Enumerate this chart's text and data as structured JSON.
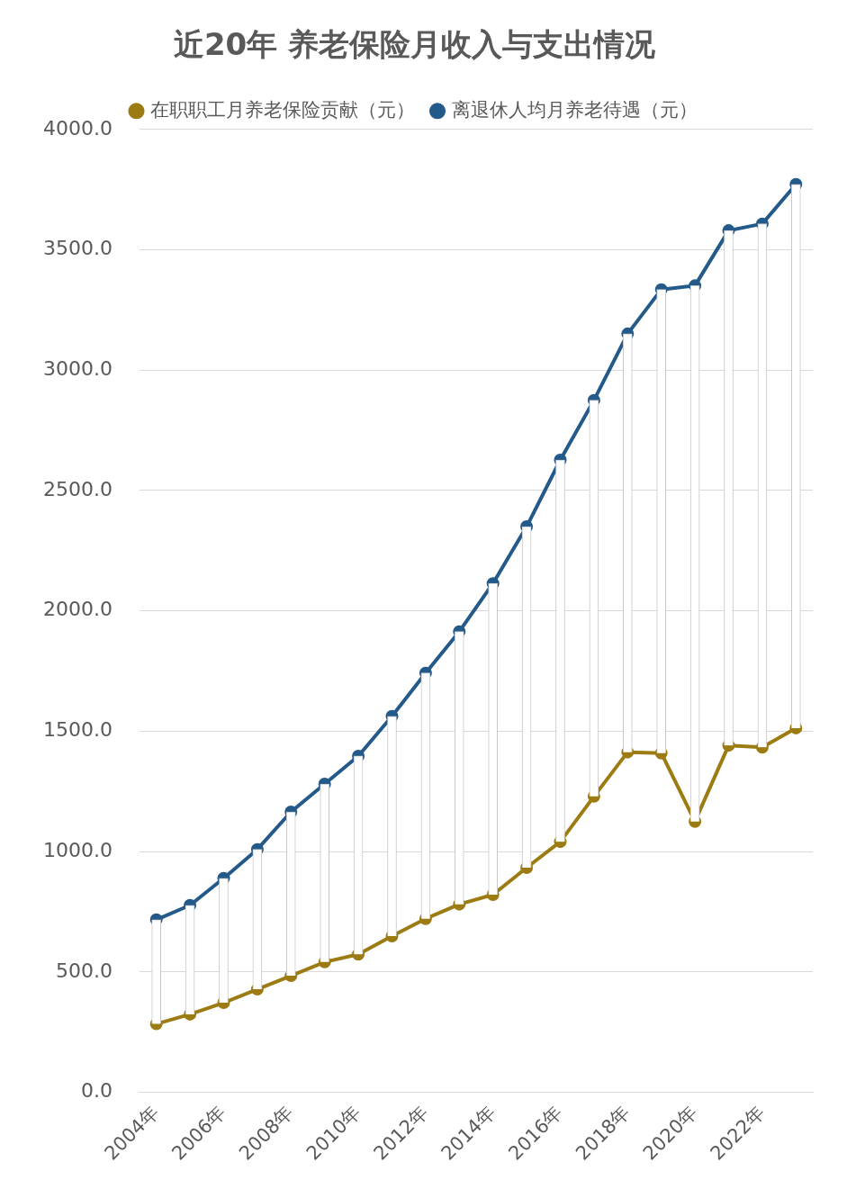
{
  "chart_data": {
    "type": "line",
    "title": "近20年 养老保险月收入与支出情况",
    "categories": [
      "2004年",
      null,
      "2006年",
      null,
      "2008年",
      null,
      "2010年",
      null,
      "2012年",
      null,
      "2014年",
      null,
      "2016年",
      null,
      "2018年",
      null,
      "2020年",
      null,
      "2022年",
      null
    ],
    "series": [
      {
        "type": "bar",
        "color": "#ffffff",
        "base": [
          284,
          324,
          372,
          428,
          484,
          541,
          573,
          649,
          721,
          781,
          821,
          933,
          1041,
          1229,
          1413,
          1409,
          1125,
          1441,
          1433,
          1513
        ],
        "values": [
          433,
          453,
          517,
          581,
          681,
          740,
          824,
          913,
          1021,
          1133,
          1293,
          1417,
          1586,
          1646,
          1738,
          1926,
          2226,
          2139,
          2175,
          2259
        ]
      },
      {
        "name": "在职职工月养老保险贡献（元）",
        "color": "#9c7c12",
        "values": [
          284,
          324,
          372,
          428,
          484,
          541,
          573,
          649,
          721,
          781,
          821,
          933,
          1041,
          1229,
          1413,
          1409,
          1125,
          1441,
          1433,
          1513
        ]
      },
      {
        "name": "离退休人均月养老待遇（元）",
        "color": "#245a8a",
        "values": [
          717,
          777,
          889,
          1009,
          1165,
          1281,
          1397,
          1562,
          1742,
          1914,
          2114,
          2350,
          2627,
          2875,
          3151,
          3335,
          3351,
          3580,
          3608,
          3772
        ]
      }
    ],
    "ylim": [
      0,
      4000
    ],
    "yticks": [
      {
        "value": 0,
        "label": "0.0"
      },
      {
        "value": 500,
        "label": "500.0"
      },
      {
        "value": 1000,
        "label": "1000.0"
      },
      {
        "value": 1500,
        "label": "1500.0"
      },
      {
        "value": 2000,
        "label": "2000.0"
      },
      {
        "value": 2500,
        "label": "2500.0"
      },
      {
        "value": 3000,
        "label": "3000.0"
      },
      {
        "value": 3500,
        "label": "3500.0"
      },
      {
        "value": 4000,
        "label": "4000.0"
      }
    ],
    "grid": "y",
    "legend": "top",
    "marker": "circle",
    "line_style": "solid"
  }
}
